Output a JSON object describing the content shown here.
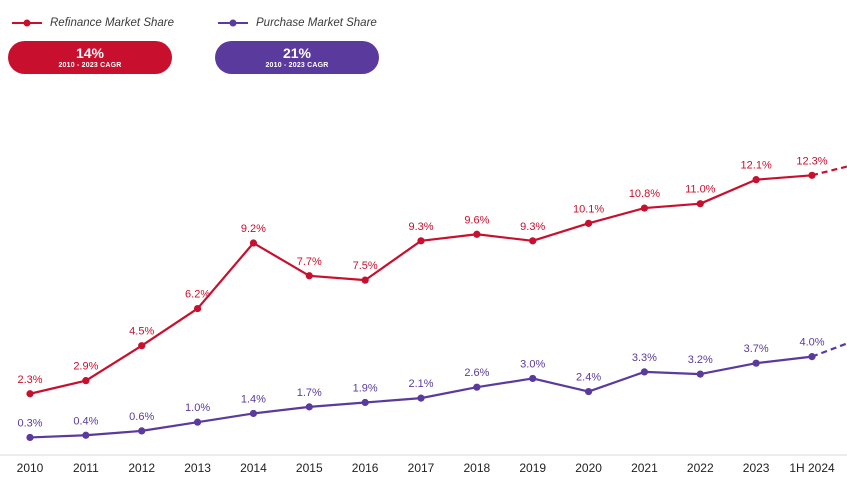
{
  "legend": {
    "refinance_label": "Refinance Market Share",
    "purchase_label": "Purchase Market Share"
  },
  "badges": {
    "refinance": {
      "value": "14%",
      "caption": "2010 - 2023 CAGR"
    },
    "purchase": {
      "value": "21%",
      "caption": "2010 - 2023 CAGR"
    }
  },
  "colors": {
    "refinance": "#c8102e",
    "purchase": "#5b3a9e"
  },
  "chart_data": {
    "type": "line",
    "categories": [
      "2010",
      "2011",
      "2012",
      "2013",
      "2014",
      "2015",
      "2016",
      "2017",
      "2018",
      "2019",
      "2020",
      "2021",
      "2022",
      "2023",
      "1H 2024"
    ],
    "ylim": [
      0,
      13
    ],
    "grid": false,
    "legend_position": "top-left",
    "series": [
      {
        "name": "Refinance Market Share",
        "values": [
          2.3,
          2.9,
          4.5,
          6.2,
          9.2,
          7.7,
          7.5,
          9.3,
          9.6,
          9.3,
          10.1,
          10.8,
          11.0,
          12.1,
          12.3
        ],
        "labels": [
          "2.3%",
          "2.9%",
          "4.5%",
          "6.2%",
          "9.2%",
          "7.7%",
          "7.5%",
          "9.3%",
          "9.6%",
          "9.3%",
          "10.1%",
          "10.8%",
          "11.0%",
          "12.1%",
          "12.3%"
        ],
        "trend": "dashed continuation after 1H 2024"
      },
      {
        "name": "Purchase Market Share",
        "values": [
          0.3,
          0.4,
          0.6,
          1.0,
          1.4,
          1.7,
          1.9,
          2.1,
          2.6,
          3.0,
          2.4,
          3.3,
          3.2,
          3.7,
          4.0
        ],
        "labels": [
          "0.3%",
          "0.4%",
          "0.6%",
          "1.0%",
          "1.4%",
          "1.7%",
          "1.9%",
          "2.1%",
          "2.6%",
          "3.0%",
          "2.4%",
          "3.3%",
          "3.2%",
          "3.7%",
          "4.0%"
        ],
        "trend": "dashed continuation after 1H 2024"
      }
    ]
  }
}
